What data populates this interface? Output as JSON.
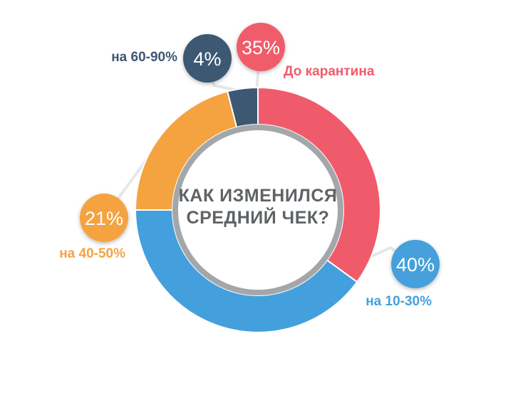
{
  "chart_data": {
    "type": "pie",
    "title": "КАК ИЗМЕНИЛСЯ СРЕДНИЙ ЧЕК?",
    "title_lines": [
      "КАК ИЗМЕНИЛСЯ",
      "СРЕДНИЙ ЧЕК?"
    ],
    "slices": [
      {
        "label": "До карантина",
        "value": 35,
        "value_label": "35%",
        "color": "#f05b6b"
      },
      {
        "label": "на 10-30%",
        "value": 40,
        "value_label": "40%",
        "color": "#44a0dc"
      },
      {
        "label": "на 40-50%",
        "value": 21,
        "value_label": "21%",
        "color": "#f4a340"
      },
      {
        "label": "на 60-90%",
        "value": 4,
        "value_label": "4%",
        "color": "#3d5872"
      }
    ]
  }
}
